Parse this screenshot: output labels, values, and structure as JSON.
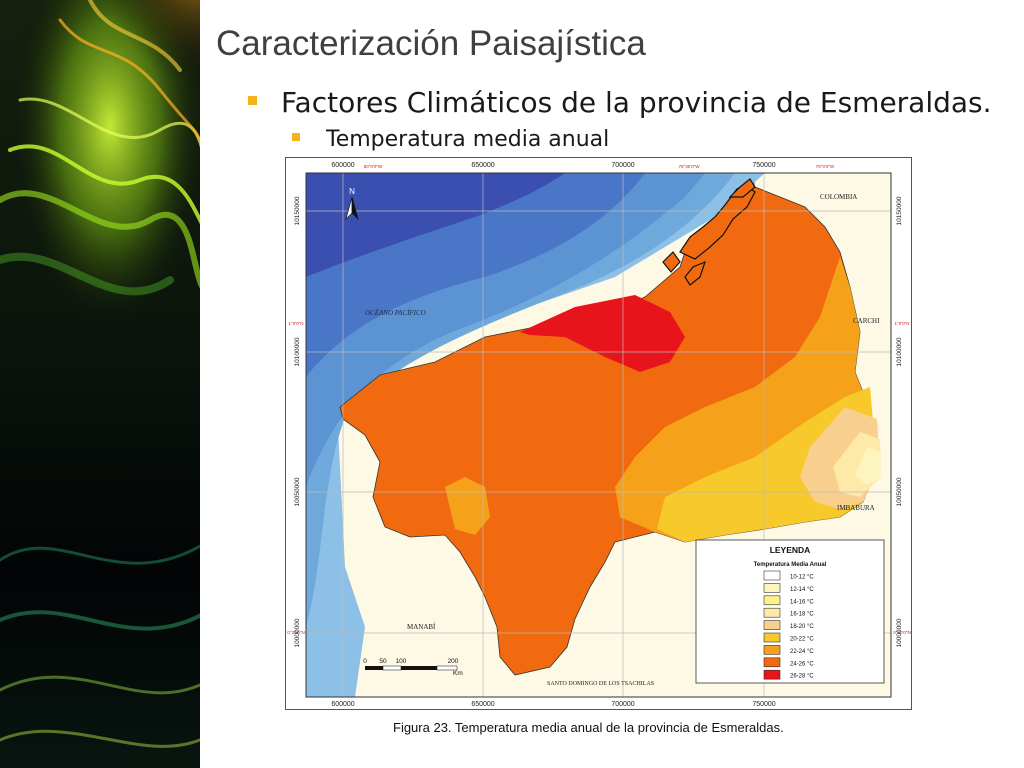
{
  "slide": {
    "title": "Caracterización Paisajística",
    "bullet_1": "Factores Climáticos de la provincia de Esmeraldas.",
    "bullet_2": "Temperatura media anual"
  },
  "map": {
    "x_ticks": [
      "600000",
      "650000",
      "700000",
      "750000"
    ],
    "y_ticks": [
      "10150000",
      "10100000",
      "10050000",
      "10000000"
    ],
    "edge_ticks": [
      "80°0'0\"W",
      "79°30'0\"W",
      "79°0'0\"W",
      "1°0'0\"N",
      "0°30'0\"N",
      "0°0'0\""
    ],
    "places": {
      "colombia": "COLOMBIA",
      "ocean": "OCÉANO PACÍFICO",
      "carchi": "CARCHI",
      "imbabura": "IMBABURA",
      "manabi": "MANABÍ",
      "santo_domingo": "SANTO DOMINGO DE LOS TSACHILAS"
    },
    "north": "N",
    "scale": {
      "ticks": [
        "0",
        "50",
        "100",
        "200"
      ],
      "unit": "Km"
    },
    "legend": {
      "title": "LEYENDA",
      "subtitle": "Temperatura Media Anual",
      "items": [
        {
          "label": "10-12  °C",
          "color": "#ffffff"
        },
        {
          "label": "12-14 °C",
          "color": "#fdf5c0"
        },
        {
          "label": "14-16 °C",
          "color": "#fcf28a"
        },
        {
          "label": "16-18 °C",
          "color": "#fde9a8"
        },
        {
          "label": "18-20 °C",
          "color": "#f9cf8e"
        },
        {
          "label": "20-22 °C",
          "color": "#f7c92a"
        },
        {
          "label": "22-24 °C",
          "color": "#f5a21a"
        },
        {
          "label": "24-26 °C",
          "color": "#f26a0f"
        },
        {
          "label": "26-28 °C",
          "color": "#e8141b"
        }
      ]
    }
  },
  "caption": {
    "label": "Figura 23.",
    "text": " Temperatura media anual de la provincia de Esmeraldas."
  }
}
